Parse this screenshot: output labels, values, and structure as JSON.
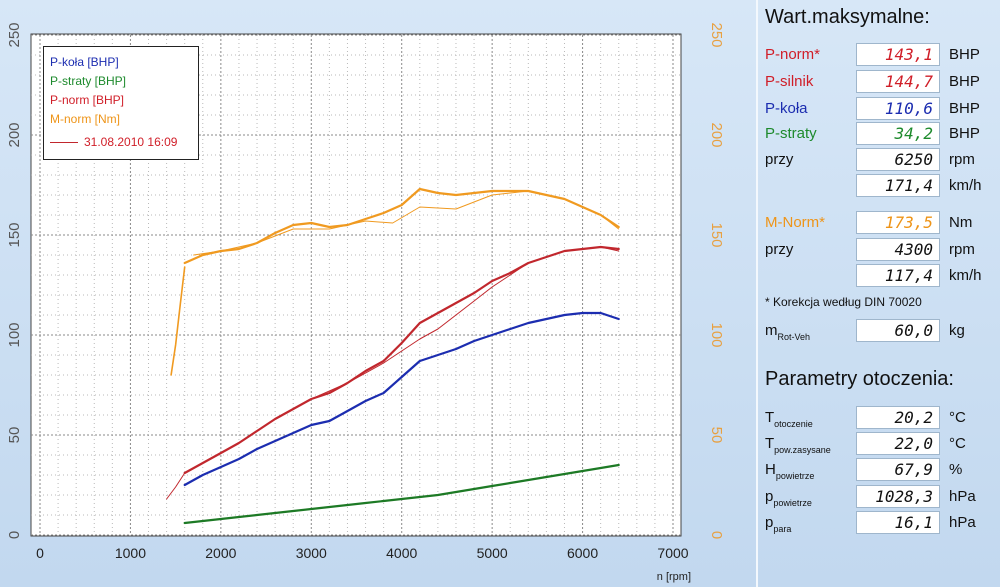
{
  "chart_data": {
    "type": "line",
    "x": [
      1600,
      1800,
      2000,
      2200,
      2400,
      2600,
      2800,
      3000,
      3200,
      3400,
      3600,
      3800,
      4000,
      4200,
      4400,
      4600,
      4800,
      5000,
      5200,
      5400,
      5600,
      5800,
      6000,
      6200,
      6400
    ],
    "series": [
      {
        "name": "P-koła [BHP]",
        "color": "#1c2db0",
        "values": [
          25,
          30,
          34,
          38,
          43,
          47,
          51,
          55,
          57,
          62,
          67,
          71,
          79,
          87,
          90,
          93,
          97,
          100,
          103,
          106,
          108,
          110,
          111,
          111,
          108
        ]
      },
      {
        "name": "P-straty [BHP]",
        "color": "#1d7a25",
        "start": 1600,
        "values": [
          6,
          7,
          8,
          9,
          10,
          11,
          12,
          13,
          14,
          15,
          16,
          17,
          18,
          19,
          20,
          21.5,
          23,
          24.5,
          26,
          27.5,
          29,
          30.5,
          32,
          33.5,
          35
        ]
      },
      {
        "name": "P-norm [BHP]",
        "color": "#c1272d",
        "values": [
          31,
          36,
          41,
          46,
          52,
          58,
          63,
          68,
          71,
          76,
          82,
          87,
          96,
          106,
          111,
          116,
          121,
          127,
          131,
          136,
          139,
          142,
          143,
          144,
          143
        ]
      },
      {
        "name": "M-norm [Nm]",
        "color": "#f09a20",
        "axis": "right",
        "values": [
          136,
          140,
          142,
          143,
          146,
          151,
          155,
          156,
          154,
          155,
          158,
          161,
          165,
          173,
          171,
          170,
          171,
          172,
          172,
          172,
          170,
          168,
          164,
          160,
          154
        ]
      }
    ],
    "overlay": {
      "name": "31.08.2010 16:09",
      "x": [
        1400,
        1500,
        1600,
        1800,
        2000,
        2200,
        2600,
        3000,
        3400,
        3800,
        4000,
        4200,
        4400,
        4600,
        4800,
        5000,
        5400,
        5800,
        6200,
        6400
      ],
      "pnorm": [
        18,
        24,
        31,
        36,
        41,
        46,
        58,
        68,
        76,
        86,
        92,
        98,
        103,
        110,
        117,
        124,
        136,
        142,
        144,
        142
      ],
      "mnorm_x": [
        1700,
        2000,
        2400,
        2800,
        3200,
        3600,
        3900,
        4200,
        4600,
        5000,
        5400,
        5800,
        6200,
        6400
      ],
      "mnorm": [
        140,
        142,
        146,
        153,
        153,
        157,
        156,
        164,
        163,
        170,
        172,
        168,
        160,
        153
      ]
    },
    "mnorm_rise": {
      "x": [
        1450,
        1500,
        1550,
        1600
      ],
      "values": [
        80,
        95,
        115,
        134
      ]
    },
    "xlim": [
      0,
      7000
    ],
    "ylim_left": [
      0,
      250
    ],
    "ylim_right": [
      0,
      250
    ],
    "x_ticks": [
      "0",
      "1000",
      "2000",
      "3000",
      "4000",
      "5000",
      "6000",
      "7000"
    ],
    "y_ticks": [
      "0",
      "50",
      "100",
      "150",
      "200",
      "250"
    ],
    "xlabel": "n [rpm]"
  },
  "legend": {
    "p_kola": "P-koła [BHP]",
    "p_straty": "P-straty [BHP]",
    "p_norm": "P-norm [BHP]",
    "m_norm": "M-norm [Nm]",
    "run": "31.08.2010 16:09"
  },
  "panel": {
    "title_max": "Wart.maksymalne:",
    "rows": [
      {
        "label": "P-norm*",
        "value": "143,1",
        "unit": "BHP"
      },
      {
        "label": "P-silnik",
        "value": "144,7",
        "unit": "BHP"
      },
      {
        "label": "P-koła",
        "value": "110,6",
        "unit": "BHP"
      },
      {
        "label": "P-straty",
        "value": "34,2",
        "unit": "BHP"
      },
      {
        "label": "przy",
        "value": "6250",
        "unit": "rpm"
      },
      {
        "label": "",
        "value": "171,4",
        "unit": "km/h"
      },
      {
        "label": "M-Norm*",
        "value": "173,5",
        "unit": "Nm"
      },
      {
        "label": "przy",
        "value": "4300",
        "unit": "rpm"
      },
      {
        "label": "",
        "value": "117,4",
        "unit": "km/h"
      }
    ],
    "note": "* Korekcja według DIN 70020",
    "mrot": {
      "label_main": "m",
      "label_sub": "Rot-Veh",
      "value": "60,0",
      "unit": "kg"
    },
    "title_env": "Parametry otoczenia:",
    "env": [
      {
        "label_main": "T",
        "label_sub": "otoczenie",
        "value": "20,2",
        "unit": "°C"
      },
      {
        "label_main": "T",
        "label_sub": "pow.zasysane",
        "value": "22,0",
        "unit": "°C"
      },
      {
        "label_main": "H",
        "label_sub": "powietrze",
        "value": "67,9",
        "unit": "%"
      },
      {
        "label_main": "p",
        "label_sub": "powietrze",
        "value": "1028,3",
        "unit": "hPa"
      },
      {
        "label_main": "p",
        "label_sub": "para",
        "value": "16,1",
        "unit": "hPa"
      }
    ]
  },
  "colors": {
    "blue": "#1c2db0",
    "green": "#1d7a25",
    "red": "#c1272d",
    "orange": "#f09a20",
    "axis_left": "#555555",
    "axis_right": "#e8a040"
  }
}
